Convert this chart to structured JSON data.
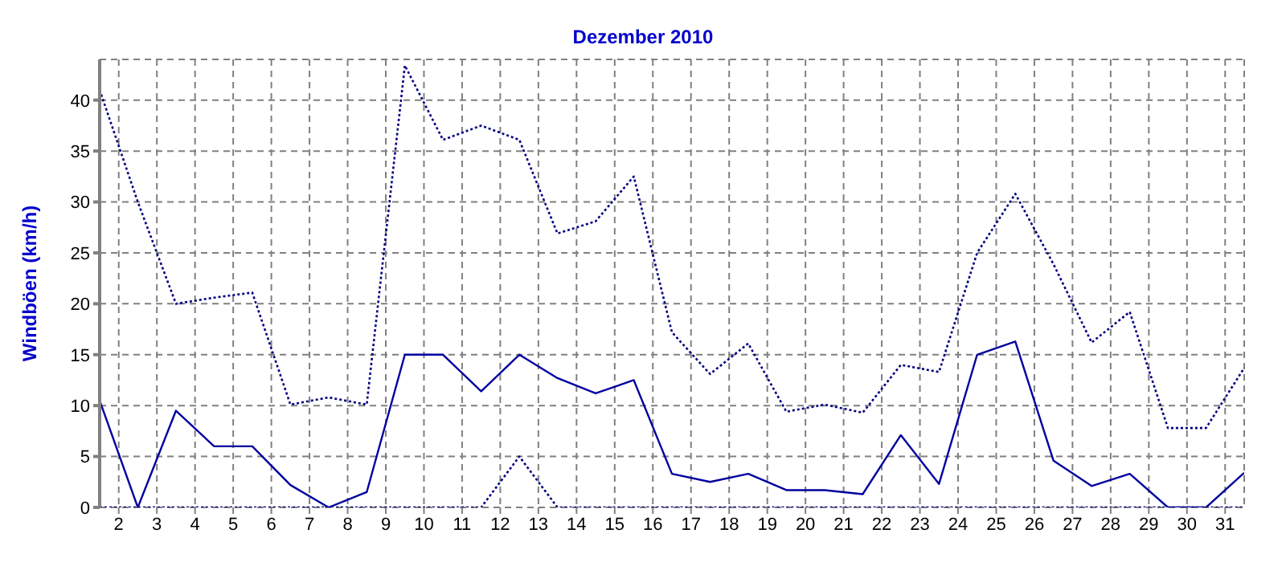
{
  "chart_data": {
    "type": "line",
    "title": "Dezember 2010",
    "ylabel": "Windböen  (km/h)",
    "x": [
      1.5,
      2.5,
      3.5,
      4.5,
      5.5,
      6.5,
      7.5,
      8.5,
      9.5,
      10.5,
      11.5,
      12.5,
      13.5,
      14.5,
      15.5,
      16.5,
      17.5,
      18.5,
      19.5,
      20.5,
      21.5,
      22.5,
      23.5,
      24.5,
      25.5,
      26.5,
      27.5,
      28.5,
      29.5,
      30.5,
      31.5
    ],
    "series": [
      {
        "color": "#000080",
        "line_style": "dotted",
        "values": [
          41,
          30,
          20,
          20.6,
          21.1,
          10.1,
          10.8,
          10.1,
          43.4,
          36.1,
          37.5,
          36.1,
          26.9,
          28.1,
          32.5,
          17.2,
          13.1,
          16.1,
          9.4,
          10.1,
          9.3,
          14,
          13.3,
          25,
          30.8,
          23.9,
          16.2,
          19.2,
          7.8,
          7.8,
          13.7
        ]
      },
      {
        "color": "#0000a0",
        "line_style": "solid",
        "values": [
          10.5,
          0,
          9.5,
          6,
          6,
          2.2,
          0,
          1.5,
          15,
          15,
          11.4,
          15,
          12.7,
          11.2,
          12.5,
          3.3,
          2.5,
          3.3,
          1.7,
          1.7,
          1.3,
          7.1,
          2.3,
          15,
          16.3,
          4.6,
          2.1,
          3.3,
          0,
          0,
          3.4
        ]
      },
      {
        "color": "#000080",
        "line_style": "dotted",
        "values": [
          0,
          0,
          0,
          0,
          0,
          0,
          0,
          0,
          0,
          0,
          0,
          5,
          0,
          0,
          0,
          0,
          0,
          0,
          0,
          0,
          0,
          0,
          0,
          0,
          0,
          0,
          0,
          0,
          0,
          0,
          0
        ]
      }
    ],
    "xlim": [
      1.5,
      31.5
    ],
    "xticks": [
      2,
      3,
      4,
      5,
      6,
      7,
      8,
      9,
      10,
      11,
      12,
      13,
      14,
      15,
      16,
      17,
      18,
      19,
      20,
      21,
      22,
      23,
      24,
      25,
      26,
      27,
      28,
      29,
      30,
      31
    ],
    "ylim": [
      0,
      44
    ],
    "yticks": [
      0,
      5,
      10,
      15,
      20,
      25,
      30,
      35,
      40
    ],
    "grid": true,
    "marker": "none"
  }
}
